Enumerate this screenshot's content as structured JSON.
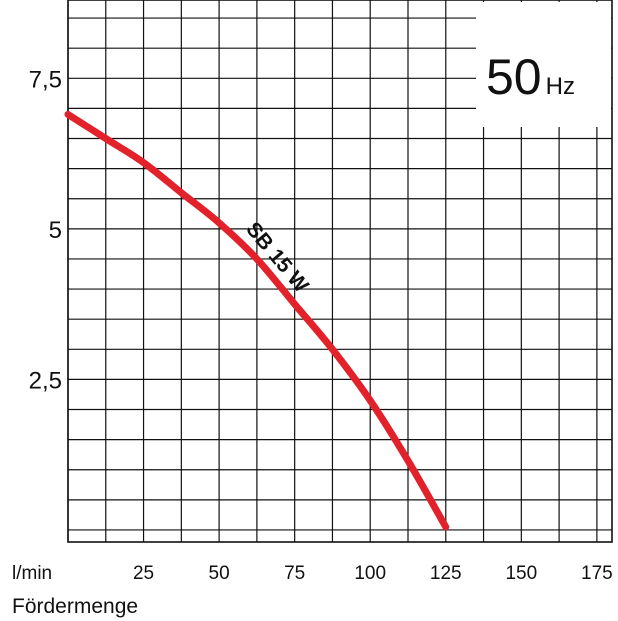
{
  "chart_data": {
    "type": "line",
    "frequency_value": "50",
    "frequency_unit": "Hz",
    "xlabel": "Fördermenge",
    "x_unit": "l/min",
    "ylabel": "",
    "xlim": [
      0,
      180
    ],
    "ylim": [
      -0.2,
      8.8
    ],
    "x_ticks": [
      {
        "value": 25,
        "label": "25"
      },
      {
        "value": 50,
        "label": "50"
      },
      {
        "value": 75,
        "label": "75"
      },
      {
        "value": 100,
        "label": "100"
      },
      {
        "value": 125,
        "label": "125"
      },
      {
        "value": 150,
        "label": "150"
      },
      {
        "value": 175,
        "label": "175"
      }
    ],
    "y_ticks": [
      {
        "value": 2.5,
        "label": "2,5"
      },
      {
        "value": 5,
        "label": "5"
      },
      {
        "value": 7.5,
        "label": "7,5"
      }
    ],
    "grid": true,
    "series": [
      {
        "name": "SB 15 W",
        "color": "#e3212a",
        "x": [
          0,
          12.5,
          25,
          37.5,
          50,
          62.5,
          75,
          87.5,
          100,
          112.5,
          125
        ],
        "y": [
          6.9,
          6.5,
          6.1,
          5.6,
          5.1,
          4.5,
          3.75,
          3.0,
          2.15,
          1.15,
          0.05
        ]
      }
    ]
  }
}
